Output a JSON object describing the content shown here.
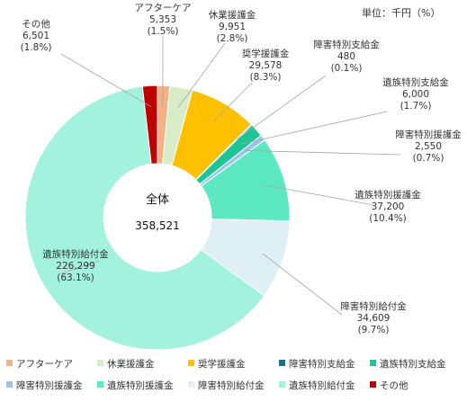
{
  "chart_data": {
    "type": "pie",
    "variant": "donut",
    "unit_note": "単位：千円（%）",
    "center_label": "全体",
    "total": "358,521",
    "legend_position": "bottom",
    "slices": [
      {
        "name": "アフターケア",
        "value": 5353,
        "value_text": "5,353",
        "pct_text": "(1.5%)",
        "color": "#f4b183"
      },
      {
        "name": "休業援護金",
        "value": 9951,
        "value_text": "9,951",
        "pct_text": "(2.8%)",
        "color": "#d9ecc8"
      },
      {
        "name": "奨学援護金",
        "value": 29578,
        "value_text": "29,578",
        "pct_text": "(8.3%)",
        "color": "#ffc000"
      },
      {
        "name": "障害特別支給金",
        "value": 480,
        "value_text": "480",
        "pct_text": "(0.1%)",
        "color": "#1f6e8c"
      },
      {
        "name": "遺族特別支給金",
        "value": 6000,
        "value_text": "6,000",
        "pct_text": "(1.7%)",
        "color": "#1ec495"
      },
      {
        "name": "障害特別援護金",
        "value": 2550,
        "value_text": "2,550",
        "pct_text": "(0.7%)",
        "color": "#9dc3e6"
      },
      {
        "name": "遺族特別援護金",
        "value": 37200,
        "value_text": "37,200",
        "pct_text": "(10.4%)",
        "color": "#5ce8c0"
      },
      {
        "name": "障害特別給付金",
        "value": 34609,
        "value_text": "34,609",
        "pct_text": "(9.7%)",
        "color": "#deeff5"
      },
      {
        "name": "遺族特別給付金",
        "value": 226299,
        "value_text": "226,299",
        "pct_text": "(63.1%)",
        "color": "#a2f2dd"
      },
      {
        "name": "その他",
        "value": 6501,
        "value_text": "6,501",
        "pct_text": "(1.8%)",
        "color": "#c00000"
      }
    ]
  }
}
